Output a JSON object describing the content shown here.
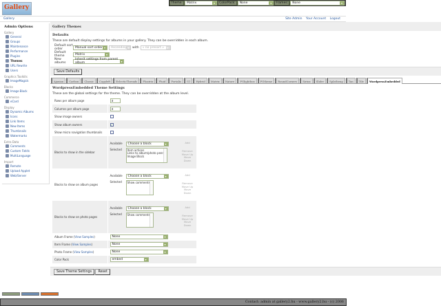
{
  "topbar": {
    "theme_label": "Theme:",
    "theme_value": "Matrix",
    "colorpack_label": "ColorPack:",
    "colorpack_value": "None",
    "frames_label": "Frames:",
    "frames_value": "None"
  },
  "logo_text": "Gallery",
  "breadcrumb": {
    "home": "Gallery",
    "links": [
      "Site Admin",
      "Your Account",
      "Logout"
    ]
  },
  "sidebar": {
    "title": "Admin Options",
    "groups": [
      {
        "name": "Gallery",
        "items": [
          "General",
          "Groups",
          "Maintenance",
          "Performance",
          "Plugins",
          "Themes",
          "URL Rewrite",
          "Users"
        ],
        "current": "Themes"
      },
      {
        "name": "Graphics Toolkits",
        "items": [
          "ImageMagick"
        ]
      },
      {
        "name": "Blocks",
        "items": [
          "Image Block"
        ]
      },
      {
        "name": "Commerce",
        "items": [
          "eCard"
        ]
      },
      {
        "name": "Display",
        "items": [
          "Dynamic Albums",
          "Icons",
          "Link Items",
          "New Items",
          "Thumbnails",
          "Watermarks"
        ]
      },
      {
        "name": "Extra Data",
        "items": [
          "Comments",
          "Custom Fields",
          "MultiLanguage"
        ]
      },
      {
        "name": "Import",
        "items": [
          "Remote",
          "Upload Applet",
          "Web/Server"
        ]
      }
    ]
  },
  "main": {
    "title": "Gallery Themes",
    "defaults": {
      "heading": "Defaults",
      "desc": "These are default display settings for albums in your gallery. They can be overridden in each album.",
      "sort_label": "Default sort order",
      "sort_value": "Manual sort order",
      "direction_value": "Ascending",
      "with_label": "with",
      "presort_value": "« no presort »",
      "theme_label": "Default theme",
      "theme_value": "Matrix",
      "new_label": "New albums",
      "new_value": "Inherit settings from parent album",
      "save": "Save Defaults"
    },
    "tabs": [
      "Ajaxian",
      "Carbon",
      "Classic",
      "Copyleft",
      "EclecticThreads",
      "Floatrix",
      "Fluid",
      "Fortalis",
      "G1",
      "Hybrid",
      "Matrix",
      "Nature",
      "PGlightbox",
      "PGtheme",
      "RoundCorners",
      "Siriux",
      "Slider",
      "Splatheng",
      "Tan",
      "Tile",
      "WordpressEmbedded"
    ],
    "active_tab": "WordpressEmbedded",
    "theme": {
      "heading": "WordpressEmbedded Theme Settings",
      "desc": "These are the global settings for the theme. They can be overridden at the album level.",
      "rows_label": "Rows per album page",
      "rows_value": "3",
      "cols_label": "Columns per album page",
      "cols_value": "3",
      "image_owners_label": "Show image owners",
      "image_owners": false,
      "album_owners_label": "Show album owners",
      "album_owners": true,
      "micro_label": "Show micro navigation thumbnails",
      "micro": false,
      "available_label": "Available",
      "selected_label": "Selected",
      "choose": "Choose a block",
      "add": "Add",
      "remove": "Remove",
      "up": "Move Up",
      "down": "Move Down",
      "blocks": [
        {
          "label": "Blocks to show in the sidebar",
          "selected": [
            "Item actions",
            "Links to album/photo peers",
            "Image Block"
          ]
        },
        {
          "label": "Blocks to show on album pages",
          "selected": [
            "Show comments"
          ]
        },
        {
          "label": "Blocks to show on photo pages",
          "selected": [
            "Show comments"
          ]
        }
      ],
      "view_samples": "View Samples",
      "album_frame_label": "Album Frame",
      "album_frame": "None",
      "item_frame_label": "Item Frame",
      "item_frame": "None",
      "photo_frame_label": "Photo Frame",
      "photo_frame": "None",
      "colorpack_label": "Color Pack",
      "colorpack": "embed",
      "save": "Save Theme Settings",
      "reset": "Reset"
    }
  },
  "footer": "Contact: admin at gallery2.hu - www.gallery2.hu - (c) 2006"
}
